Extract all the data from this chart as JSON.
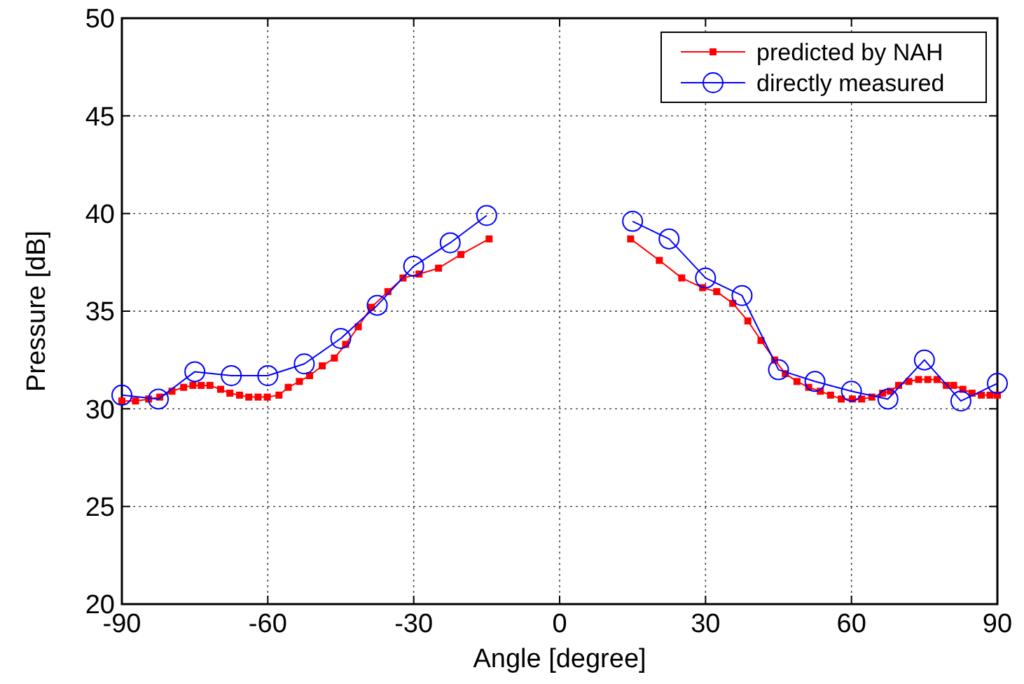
{
  "chart_data": {
    "type": "line",
    "xlabel": "Angle [degree]",
    "ylabel": "Pressure [dB]",
    "xlim": [
      -90,
      90
    ],
    "ylim": [
      20,
      50
    ],
    "xticks": [
      -90,
      -60,
      -30,
      0,
      30,
      60,
      90
    ],
    "yticks": [
      20,
      25,
      30,
      35,
      40,
      45,
      50
    ],
    "grid": true,
    "legend": "top right",
    "series": [
      {
        "name": "predicted by NAH",
        "color": "#ff0000",
        "marker": "square",
        "line_style": "solid",
        "x": [
          -90,
          -87.2,
          -84.5,
          -82.2,
          -79.7,
          -77.3,
          -75.4,
          -73.7,
          -71.9,
          -69.7,
          -67.8,
          -65.8,
          -63.9,
          -62,
          -60.1,
          -57.7,
          -55.8,
          -53.5,
          -51.4,
          -48.8,
          -46.3,
          -44,
          -41.4,
          -38.7,
          -35.3,
          -32.2,
          -28.9,
          -24.9,
          -20.3,
          -14.5,
          null,
          14.6,
          20.5,
          25.1,
          29.4,
          32.3,
          35.6,
          38.7,
          41.4,
          44.2,
          46.4,
          48.8,
          51.2,
          53.6,
          55.7,
          57.9,
          60.2,
          62.1,
          64.2,
          66.4,
          68,
          69.7,
          71.8,
          73.8,
          75.7,
          77.6,
          79.5,
          81,
          82.9,
          84.8,
          86.7,
          88.5,
          90
        ],
        "values": [
          30.4,
          30.4,
          30.5,
          30.6,
          30.9,
          31.1,
          31.2,
          31.2,
          31.2,
          31,
          30.8,
          30.7,
          30.6,
          30.6,
          30.6,
          30.7,
          31.1,
          31.4,
          31.7,
          32.2,
          32.6,
          33.3,
          34.2,
          35.2,
          36,
          36.7,
          36.9,
          37.2,
          37.9,
          38.7,
          null,
          38.7,
          37.6,
          36.7,
          36.2,
          36,
          35.4,
          34.5,
          33.5,
          32.5,
          31.8,
          31.4,
          31.1,
          30.9,
          30.7,
          30.5,
          30.5,
          30.5,
          30.6,
          30.8,
          30.9,
          31.2,
          31.4,
          31.5,
          31.5,
          31.5,
          31.2,
          31.2,
          31,
          30.8,
          30.7,
          30.7,
          30.7
        ]
      },
      {
        "name": "directly measured",
        "color": "#0000ff",
        "marker": "circle",
        "line_style": "solid",
        "x": [
          -90,
          -82.5,
          -75,
          -67.5,
          -60,
          -52.5,
          -45,
          -37.5,
          -30,
          -22.5,
          -15,
          null,
          15,
          22.5,
          30,
          37.5,
          45,
          52.5,
          60,
          67.5,
          75,
          82.5,
          90
        ],
        "values": [
          30.7,
          30.5,
          31.9,
          31.7,
          31.7,
          32.3,
          33.6,
          35.3,
          37.3,
          38.5,
          39.9,
          null,
          39.6,
          38.7,
          36.7,
          35.8,
          32,
          31.4,
          30.9,
          30.5,
          32.5,
          30.4,
          31.3
        ]
      }
    ]
  }
}
